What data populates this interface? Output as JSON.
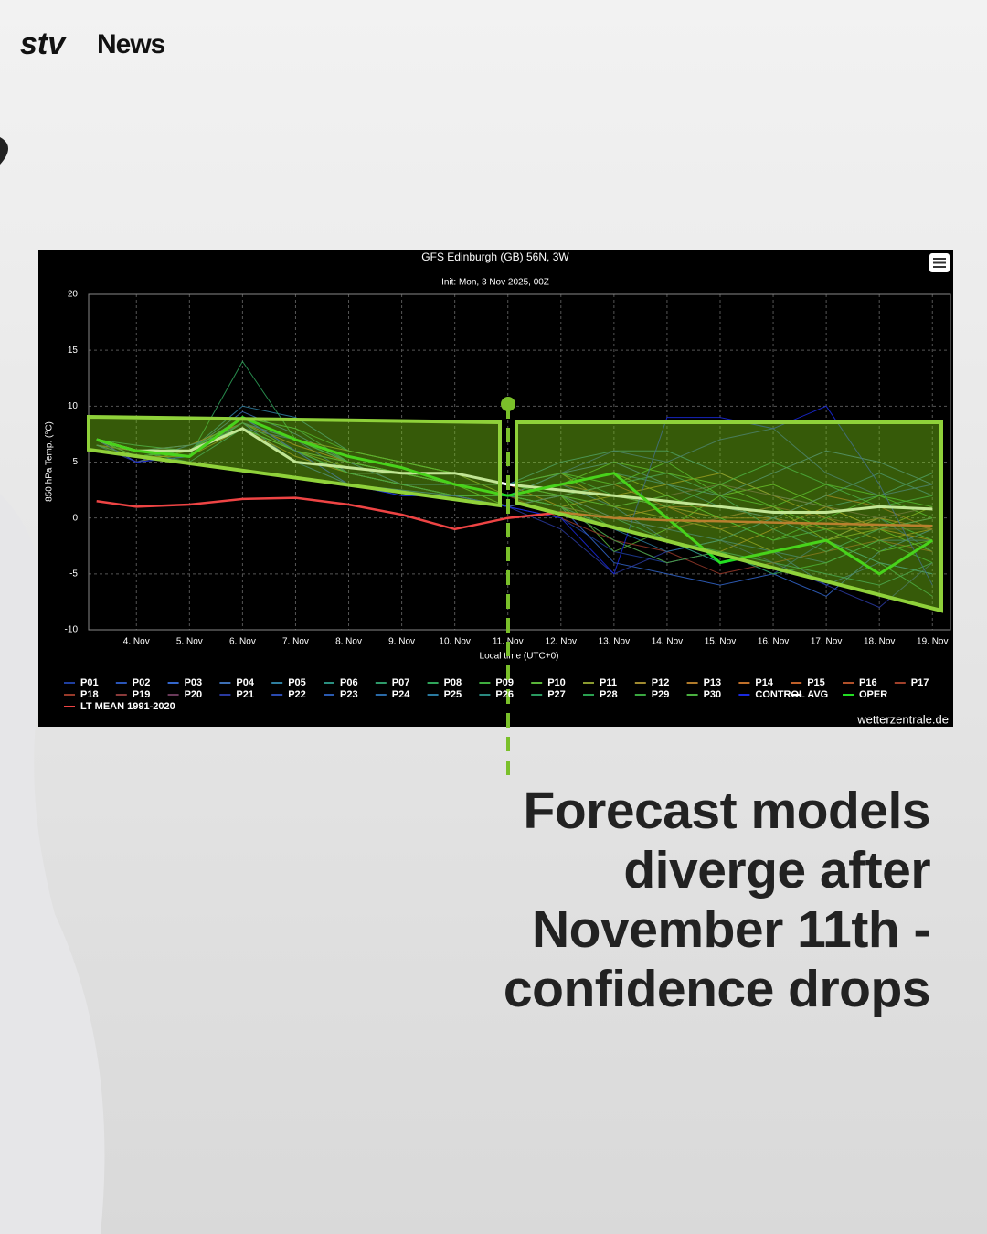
{
  "brand": {
    "logo": "stv",
    "name": "News"
  },
  "headline": [
    "Forecast models",
    "diverge after",
    "November 11th -",
    "confidence drops"
  ],
  "chart_data": {
    "type": "line",
    "title": "GFS Edinburgh (GB) 56N, 3W",
    "subtitle": "Init: Mon, 3 Nov 2025, 00Z",
    "y_label": "850 hPa Temp. (°C)",
    "x_label": "Local time (UTC+0)",
    "credit": "wetterzentrale.de",
    "grid": true,
    "xlim": [
      3.1,
      19.34
    ],
    "xticks": [
      {
        "value": 4,
        "label": "4. Nov"
      },
      {
        "value": 5,
        "label": "5. Nov"
      },
      {
        "value": 6,
        "label": "6. Nov"
      },
      {
        "value": 7,
        "label": "7. Nov"
      },
      {
        "value": 8,
        "label": "8. Nov"
      },
      {
        "value": 9,
        "label": "9. Nov"
      },
      {
        "value": 10,
        "label": "10. Nov"
      },
      {
        "value": 11,
        "label": "11. Nov"
      },
      {
        "value": 12,
        "label": "12. Nov"
      },
      {
        "value": 13,
        "label": "13. Nov"
      },
      {
        "value": 14,
        "label": "14. Nov"
      },
      {
        "value": 15,
        "label": "15. Nov"
      },
      {
        "value": 16,
        "label": "16. Nov"
      },
      {
        "value": 17,
        "label": "17. Nov"
      },
      {
        "value": 18,
        "label": "18. Nov"
      },
      {
        "value": 19,
        "label": "19. Nov"
      }
    ],
    "ylim": [
      -10,
      20
    ],
    "yticks": [
      -10,
      -5,
      0,
      5,
      10,
      15,
      20
    ],
    "x": [
      3.25,
      4,
      5,
      6,
      7,
      8,
      9,
      10,
      11,
      12,
      13,
      14,
      15,
      16,
      17,
      18,
      19
    ],
    "series": [
      {
        "name": "P01",
        "color": "#1f3f9f",
        "values": [
          7,
          5.5,
          6,
          9,
          6,
          4,
          3,
          2,
          1,
          0,
          -3,
          -4,
          -3,
          -5,
          -2,
          0,
          -3
        ]
      },
      {
        "name": "P02",
        "color": "#2a55b8",
        "values": [
          7,
          5,
          6.5,
          8,
          7,
          4,
          3,
          3,
          2,
          3,
          1,
          -2,
          -4,
          -3,
          -6,
          -4,
          -5
        ]
      },
      {
        "name": "P03",
        "color": "#3366cc",
        "values": [
          6.5,
          6,
          5.5,
          8.5,
          5,
          3,
          2.5,
          2,
          2,
          1,
          -4,
          -5,
          -6,
          -5,
          -7,
          -3,
          -1
        ]
      },
      {
        "name": "P04",
        "color": "#3d6fb5",
        "values": [
          7,
          6,
          6,
          9.5,
          7.5,
          5,
          4,
          3,
          2,
          4,
          5,
          3,
          2,
          4,
          6,
          5,
          3
        ]
      },
      {
        "name": "P05",
        "color": "#2f7fa0",
        "values": [
          7,
          5.5,
          6,
          10,
          9,
          6,
          5,
          4,
          3,
          5,
          6,
          6,
          4,
          2,
          1,
          2,
          4
        ]
      },
      {
        "name": "P06",
        "color": "#2a8f80",
        "values": [
          6.5,
          6,
          5,
          8,
          6,
          4,
          4,
          3,
          2,
          1,
          0,
          -2,
          -3,
          -4,
          -5,
          -6,
          -4
        ]
      },
      {
        "name": "P07",
        "color": "#2e9a6a",
        "values": [
          7,
          6.5,
          6,
          9,
          8,
          5,
          4,
          4,
          3,
          2,
          -1,
          -2,
          -4,
          -3,
          -2,
          -4,
          -7
        ]
      },
      {
        "name": "P08",
        "color": "#2fa55a",
        "values": [
          7,
          6,
          5.5,
          14,
          7,
          5,
          4,
          3,
          2,
          3,
          2,
          1,
          0,
          -2,
          -1,
          0,
          -2
        ]
      },
      {
        "name": "P09",
        "color": "#3fae3f",
        "values": [
          7,
          5.5,
          6,
          8,
          6,
          4,
          3,
          2,
          2,
          4,
          3,
          5,
          2,
          1,
          3,
          2,
          0
        ]
      },
      {
        "name": "P10",
        "color": "#5ab53a",
        "values": [
          6.5,
          6,
          6,
          8.5,
          7,
          5,
          3,
          3,
          1,
          2,
          -3,
          -1,
          2,
          3,
          1,
          -1,
          -3
        ]
      },
      {
        "name": "P11",
        "color": "#8a9a30",
        "values": [
          7,
          5,
          6,
          8,
          6,
          4.5,
          4,
          4,
          2,
          3,
          4,
          2,
          0,
          1,
          -2,
          -1,
          1
        ]
      },
      {
        "name": "P12",
        "color": "#a08a30",
        "values": [
          7,
          6,
          6,
          9,
          7,
          6,
          5,
          4,
          3,
          4,
          1,
          0,
          -1,
          -3,
          -2,
          0,
          -1
        ]
      },
      {
        "name": "P13",
        "color": "#b07a2a",
        "values": [
          6.5,
          5.5,
          5.5,
          8,
          5.5,
          4,
          3,
          3,
          2,
          1,
          2,
          3,
          4,
          2,
          0,
          -2,
          -1
        ]
      },
      {
        "name": "P14",
        "color": "#c0702a",
        "values": [
          7,
          6,
          6.5,
          8.5,
          6.5,
          5,
          4,
          4,
          3,
          1,
          -2,
          -4,
          -3,
          -1,
          1,
          -1,
          -2
        ]
      },
      {
        "name": "P15",
        "color": "#c0602a",
        "values": [
          7,
          6,
          6,
          9,
          7,
          5,
          4,
          3,
          2,
          2,
          0,
          1,
          0,
          0,
          -1,
          -1,
          0
        ]
      },
      {
        "name": "P16",
        "color": "#b0502a",
        "values": [
          7,
          5.5,
          6,
          8,
          6,
          4,
          3,
          2,
          1,
          2,
          3,
          1,
          -1,
          0,
          2,
          1,
          -1
        ]
      },
      {
        "name": "P17",
        "color": "#a0402a",
        "values": [
          6.5,
          6,
          5.5,
          9,
          6,
          4,
          3,
          3,
          2,
          3,
          2,
          1,
          1,
          0,
          -1,
          0,
          -1
        ]
      },
      {
        "name": "P18",
        "color": "#983a2a",
        "values": [
          7,
          6,
          6,
          8.5,
          6,
          4,
          4,
          3,
          2,
          0,
          -2,
          -3,
          -5,
          -4,
          -3,
          -2,
          -3
        ]
      },
      {
        "name": "P19",
        "color": "#8a3a3a",
        "values": [
          7,
          5.5,
          6,
          9,
          7,
          5,
          4,
          3,
          2,
          1,
          0,
          -1,
          0,
          1,
          0,
          -1,
          -1
        ]
      },
      {
        "name": "P20",
        "color": "#6a3a5a",
        "values": [
          7,
          6,
          6,
          8,
          6,
          5,
          4,
          3,
          3,
          2,
          1,
          2,
          3,
          2,
          1,
          0,
          1
        ]
      },
      {
        "name": "P21",
        "color": "#2a3aa0",
        "values": [
          6.5,
          5,
          5.5,
          9,
          6,
          4,
          3,
          2,
          1,
          -1,
          -5,
          -3,
          -2,
          -4,
          -6,
          -8,
          -4
        ]
      },
      {
        "name": "P22",
        "color": "#2a4ab0",
        "values": [
          7,
          6,
          6,
          8.5,
          7,
          5,
          3,
          3,
          2,
          4,
          6,
          5,
          7,
          8,
          4,
          2,
          3
        ]
      },
      {
        "name": "P23",
        "color": "#2a5ab0",
        "values": [
          7,
          5.5,
          6,
          9,
          6,
          3,
          2,
          2,
          1,
          2,
          0,
          -1,
          -2,
          -3,
          -4,
          -2,
          -2
        ]
      },
      {
        "name": "P24",
        "color": "#2a6aa8",
        "values": [
          7,
          6,
          6.5,
          8,
          6,
          4,
          3,
          3,
          2,
          3,
          4,
          3,
          1,
          0,
          2,
          4,
          2
        ]
      },
      {
        "name": "P25",
        "color": "#2a7aa0",
        "values": [
          7,
          6,
          6,
          9,
          7,
          5,
          4,
          3,
          2,
          1,
          -1,
          -3,
          -2,
          0,
          -2,
          -4,
          -5
        ]
      },
      {
        "name": "P26",
        "color": "#2a8a80",
        "values": [
          6.5,
          5.5,
          6,
          8,
          6,
          4,
          4,
          3,
          2,
          2,
          3,
          4,
          2,
          -1,
          -3,
          -1,
          0
        ]
      },
      {
        "name": "P27",
        "color": "#2a9a60",
        "values": [
          7,
          6,
          6,
          9,
          7,
          5,
          4,
          3,
          3,
          4,
          2,
          1,
          3,
          5,
          3,
          1,
          2
        ]
      },
      {
        "name": "P28",
        "color": "#2aa050",
        "values": [
          7,
          6,
          5.5,
          8.5,
          6,
          4,
          3,
          2,
          2,
          1,
          -2,
          -4,
          -3,
          -5,
          -4,
          -2,
          -4
        ]
      },
      {
        "name": "P29",
        "color": "#3aa840",
        "values": [
          7,
          5.5,
          6,
          9,
          8,
          6,
          5,
          4,
          3,
          2,
          1,
          2,
          0,
          -2,
          0,
          2,
          1
        ]
      },
      {
        "name": "P30",
        "color": "#4ab040",
        "values": [
          7,
          6,
          6,
          8,
          6,
          5,
          4,
          3,
          2,
          3,
          5,
          4,
          3,
          1,
          -1,
          -3,
          -2
        ]
      },
      {
        "name": "CONTROL",
        "color": "#1a2ae0",
        "values": [
          7,
          5,
          5.5,
          9,
          6,
          3,
          2,
          2,
          1,
          0,
          -5,
          9,
          9,
          8,
          10,
          3,
          -6
        ]
      },
      {
        "name": "AVG",
        "color": "#ffffff",
        "values": [
          7,
          6,
          6,
          8,
          5,
          4.5,
          4,
          4,
          3,
          2.5,
          2,
          1.5,
          1,
          0.5,
          0.5,
          1,
          0.8
        ]
      },
      {
        "name": "OPER",
        "color": "#22dd22",
        "values": [
          7,
          6,
          5.5,
          9,
          7,
          5.5,
          4.5,
          3,
          2,
          3,
          4,
          0,
          -4,
          -3,
          -2,
          -5,
          -2
        ]
      },
      {
        "name": "LT MEAN 1991-2020",
        "color": "#ee4444",
        "values": [
          1.5,
          1,
          1.2,
          1.7,
          1.8,
          1.2,
          0.3,
          -1,
          0,
          0.5,
          0,
          -0.2,
          -0.3,
          -0.4,
          -0.5,
          -0.6,
          -0.7
        ]
      }
    ]
  }
}
